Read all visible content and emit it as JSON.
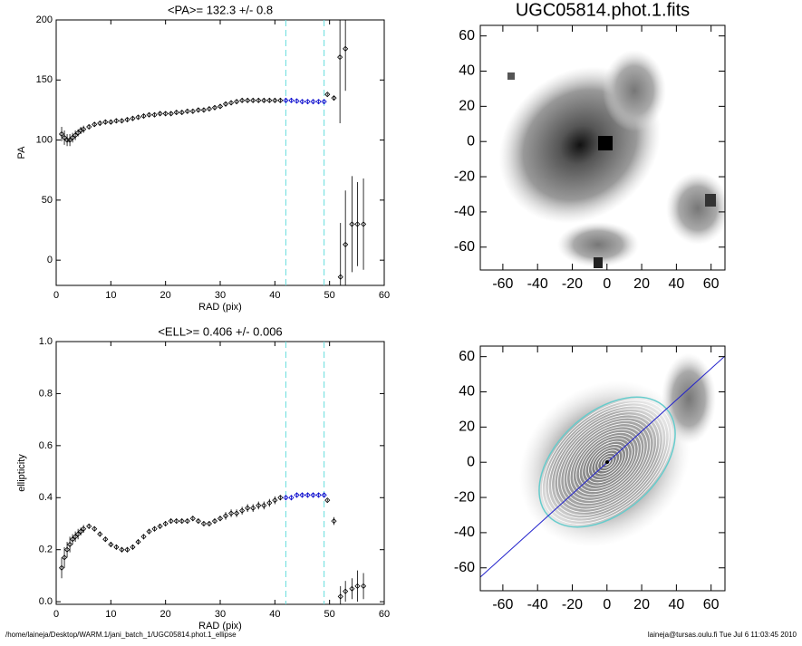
{
  "chart_data": [
    {
      "type": "scatter",
      "title": "<PA>= 132.3 +/-   0.8",
      "xlabel": "RAD (pix)",
      "ylabel": "PA",
      "xlim": [
        0,
        60
      ],
      "xticks": [
        0,
        10,
        20,
        30,
        40,
        50,
        60
      ],
      "ylim": [
        -21,
        200
      ],
      "yticks": [
        0,
        50,
        100,
        150,
        200
      ],
      "color": "#000000",
      "highlight_color": "#0000cc",
      "highlight_range": [
        42,
        49
      ],
      "vline_color": "#66dddd",
      "series": [
        {
          "x": [
            1,
            1.5,
            2,
            2.5,
            3,
            3.5,
            4,
            4.5,
            5,
            6,
            7,
            8,
            9,
            10,
            11,
            12,
            13,
            14,
            15,
            16,
            17,
            18,
            19,
            20,
            21,
            22,
            23,
            24,
            25,
            26,
            27,
            28,
            29,
            30,
            31,
            32,
            33,
            34,
            35,
            36,
            37,
            38,
            39,
            40,
            41,
            42,
            43,
            44,
            45,
            46,
            47,
            48,
            49,
            49.6,
            50.8,
            51.9,
            52.9,
            52,
            52.9,
            54.1,
            55.1,
            56.2
          ],
          "values": [
            105,
            102,
            100,
            100,
            102,
            104,
            106,
            108,
            109,
            111,
            113,
            114,
            115,
            115,
            116,
            116,
            117,
            118,
            119,
            120,
            121,
            121,
            122,
            122,
            122,
            123,
            123,
            124,
            124,
            125,
            125,
            126,
            127,
            128,
            130,
            131,
            132,
            133,
            133,
            133,
            133,
            133,
            133,
            133,
            133,
            133,
            133,
            132.5,
            132,
            132,
            132,
            132,
            132,
            138,
            135,
            169,
            176,
            -14,
            13,
            30,
            30,
            30
          ],
          "errors": [
            6,
            6,
            5,
            5,
            4,
            4,
            3,
            3,
            3,
            2,
            2,
            2,
            2,
            2,
            1.5,
            1.5,
            1.5,
            1.5,
            1.5,
            1.5,
            1.5,
            1.5,
            1.5,
            1.5,
            1.5,
            1.5,
            1.5,
            1.5,
            1.5,
            1.5,
            1.5,
            1.5,
            1.5,
            1.5,
            1.5,
            1.5,
            1.5,
            1.5,
            1.5,
            1.5,
            1.5,
            1.5,
            1.5,
            1.5,
            1.5,
            1.5,
            1.5,
            1.5,
            1.5,
            1.5,
            1.5,
            1.5,
            1.5,
            1,
            2,
            55,
            35,
            45,
            45,
            40,
            35,
            38
          ]
        }
      ]
    },
    {
      "type": "image",
      "title": "UGC05814.phot.1.fits",
      "xlim": [
        -73,
        68
      ],
      "xticks": [
        -60,
        -40,
        -20,
        0,
        20,
        40,
        60
      ],
      "ylim": [
        -73,
        66
      ],
      "yticks": [
        -60,
        -40,
        -20,
        0,
        20,
        40,
        60
      ]
    },
    {
      "type": "scatter",
      "title": "<ELL>= 0.406 +/-  0.006",
      "xlabel": "RAD (pix)",
      "ylabel": "ellipticity",
      "xlim": [
        0,
        60
      ],
      "xticks": [
        0,
        10,
        20,
        30,
        40,
        50,
        60
      ],
      "ylim": [
        -0.01,
        1.0
      ],
      "yticks": [
        {
          "value": 0,
          "label": "0.0"
        },
        0.2,
        0.4,
        0.6,
        0.8,
        {
          "value": 1,
          "label": "1.0"
        }
      ],
      "color": "#000000",
      "highlight_color": "#0000cc",
      "highlight_range": [
        42,
        49
      ],
      "vline_color": "#66dddd",
      "series": [
        {
          "x": [
            1,
            1.5,
            2,
            2.5,
            3,
            3.5,
            4,
            4.5,
            5,
            6,
            7,
            8,
            9,
            10,
            11,
            12,
            13,
            14,
            15,
            16,
            17,
            18,
            19,
            20,
            21,
            22,
            23,
            24,
            25,
            26,
            27,
            28,
            29,
            30,
            31,
            32,
            33,
            34,
            35,
            36,
            37,
            38,
            39,
            40,
            41,
            42,
            43,
            44,
            45,
            46,
            47,
            48,
            49,
            49.6,
            50.8,
            52,
            52.9,
            54.1,
            55.1,
            56.2
          ],
          "values": [
            0.13,
            0.17,
            0.2,
            0.22,
            0.24,
            0.25,
            0.26,
            0.27,
            0.28,
            0.29,
            0.28,
            0.26,
            0.24,
            0.22,
            0.21,
            0.2,
            0.2,
            0.21,
            0.23,
            0.25,
            0.27,
            0.28,
            0.29,
            0.3,
            0.31,
            0.31,
            0.31,
            0.31,
            0.32,
            0.31,
            0.3,
            0.3,
            0.31,
            0.32,
            0.33,
            0.34,
            0.34,
            0.35,
            0.36,
            0.36,
            0.37,
            0.37,
            0.38,
            0.39,
            0.4,
            0.4,
            0.4,
            0.41,
            0.41,
            0.41,
            0.41,
            0.41,
            0.41,
            0.39,
            0.31,
            0.02,
            0.04,
            0.05,
            0.06,
            0.06
          ],
          "errors": [
            0.04,
            0.04,
            0.03,
            0.03,
            0.02,
            0.02,
            0.02,
            0.015,
            0.015,
            0.01,
            0.01,
            0.01,
            0.01,
            0.01,
            0.01,
            0.01,
            0.01,
            0.01,
            0.01,
            0.01,
            0.01,
            0.01,
            0.01,
            0.01,
            0.01,
            0.01,
            0.01,
            0.01,
            0.01,
            0.01,
            0.01,
            0.01,
            0.01,
            0.01,
            0.015,
            0.015,
            0.015,
            0.015,
            0.015,
            0.015,
            0.015,
            0.015,
            0.015,
            0.015,
            0.01,
            0.01,
            0.01,
            0.01,
            0.01,
            0.01,
            0.01,
            0.01,
            0.01,
            0.005,
            0.015,
            0.04,
            0.04,
            0.04,
            0.06,
            0.05
          ]
        }
      ]
    },
    {
      "type": "image",
      "xlim": [
        -73,
        68
      ],
      "xticks": [
        -60,
        -40,
        -20,
        0,
        20,
        40,
        60
      ],
      "ylim": [
        -73,
        66
      ],
      "yticks": [
        -60,
        -40,
        -20,
        0,
        20,
        40,
        60
      ]
    }
  ],
  "footer": {
    "left": "/home/laineja/Desktop/WARM.1/jani_batch_1/UGC05814.phot.1_ellipse",
    "right": "laineja@tursas.oulu.fi  Tue Jul  6 11:03:45 2010"
  }
}
